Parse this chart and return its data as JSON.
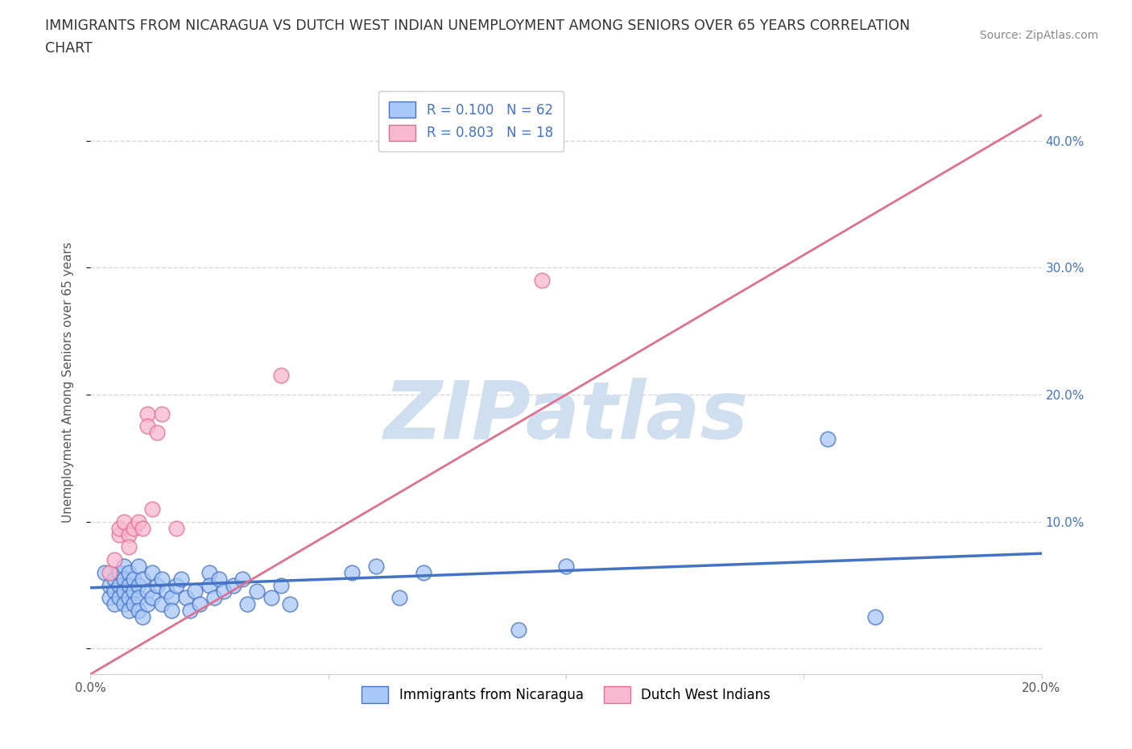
{
  "title_line1": "IMMIGRANTS FROM NICARAGUA VS DUTCH WEST INDIAN UNEMPLOYMENT AMONG SENIORS OVER 65 YEARS CORRELATION",
  "title_line2": "CHART",
  "source": "Source: ZipAtlas.com",
  "ylabel": "Unemployment Among Seniors over 65 years",
  "xlim": [
    0.0,
    0.2
  ],
  "ylim": [
    -0.02,
    0.44
  ],
  "yticks": [
    0.0,
    0.1,
    0.2,
    0.3,
    0.4
  ],
  "right_ytick_labels": [
    "",
    "10.0%",
    "20.0%",
    "30.0%",
    "40.0%"
  ],
  "xticks": [
    0.0,
    0.05,
    0.1,
    0.15,
    0.2
  ],
  "xtick_labels": [
    "0.0%",
    "",
    "",
    "",
    "20.0%"
  ],
  "blue_R": 0.1,
  "blue_N": 62,
  "pink_R": 0.803,
  "pink_N": 18,
  "blue_color": "#a8c8f8",
  "pink_color": "#f8b8d0",
  "blue_line_color": "#4472c4",
  "pink_line_color": "#e07090",
  "watermark": "ZIPatlas",
  "watermark_color": "#d0dff0",
  "background_color": "#ffffff",
  "grid_color": "#d8d8d8",
  "blue_scatter_x": [
    0.003,
    0.004,
    0.004,
    0.005,
    0.005,
    0.005,
    0.006,
    0.006,
    0.006,
    0.007,
    0.007,
    0.007,
    0.007,
    0.008,
    0.008,
    0.008,
    0.008,
    0.009,
    0.009,
    0.009,
    0.01,
    0.01,
    0.01,
    0.01,
    0.011,
    0.011,
    0.012,
    0.012,
    0.013,
    0.013,
    0.014,
    0.015,
    0.015,
    0.016,
    0.017,
    0.017,
    0.018,
    0.019,
    0.02,
    0.021,
    0.022,
    0.023,
    0.025,
    0.025,
    0.026,
    0.027,
    0.028,
    0.03,
    0.032,
    0.033,
    0.035,
    0.038,
    0.04,
    0.042,
    0.055,
    0.06,
    0.065,
    0.07,
    0.09,
    0.1,
    0.155,
    0.165
  ],
  "blue_scatter_y": [
    0.06,
    0.04,
    0.05,
    0.055,
    0.045,
    0.035,
    0.06,
    0.05,
    0.04,
    0.065,
    0.055,
    0.045,
    0.035,
    0.06,
    0.05,
    0.04,
    0.03,
    0.055,
    0.045,
    0.035,
    0.065,
    0.05,
    0.04,
    0.03,
    0.055,
    0.025,
    0.045,
    0.035,
    0.06,
    0.04,
    0.05,
    0.055,
    0.035,
    0.045,
    0.04,
    0.03,
    0.05,
    0.055,
    0.04,
    0.03,
    0.045,
    0.035,
    0.06,
    0.05,
    0.04,
    0.055,
    0.045,
    0.05,
    0.055,
    0.035,
    0.045,
    0.04,
    0.05,
    0.035,
    0.06,
    0.065,
    0.04,
    0.06,
    0.015,
    0.065,
    0.165,
    0.025
  ],
  "pink_scatter_x": [
    0.004,
    0.005,
    0.006,
    0.006,
    0.007,
    0.008,
    0.008,
    0.009,
    0.01,
    0.011,
    0.012,
    0.012,
    0.013,
    0.014,
    0.015,
    0.018,
    0.04,
    0.095
  ],
  "pink_scatter_y": [
    0.06,
    0.07,
    0.09,
    0.095,
    0.1,
    0.09,
    0.08,
    0.095,
    0.1,
    0.095,
    0.185,
    0.175,
    0.11,
    0.17,
    0.185,
    0.095,
    0.215,
    0.29
  ],
  "blue_line_x": [
    0.0,
    0.2
  ],
  "blue_line_y": [
    0.048,
    0.075
  ],
  "pink_line_x": [
    0.0,
    0.2
  ],
  "pink_line_y": [
    -0.02,
    0.42
  ]
}
